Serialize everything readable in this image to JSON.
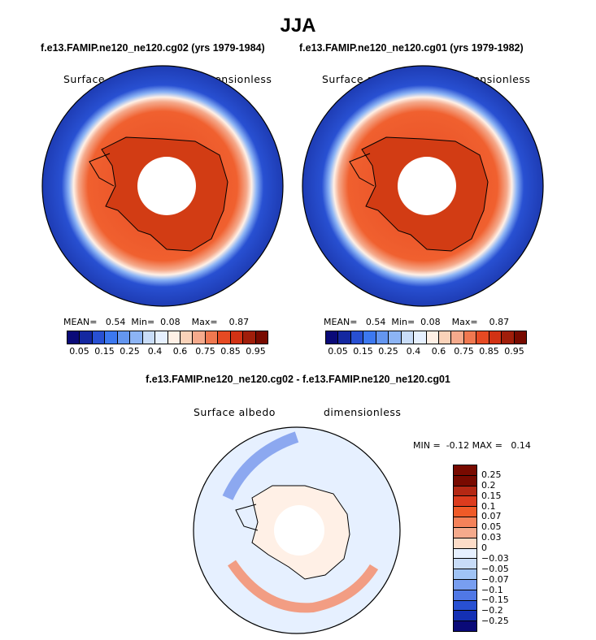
{
  "season": "JJA",
  "case_left": "f.e13.FAMIP.ne120_ne120.cg02 (yrs 1979-1984)",
  "case_right": "f.e13.FAMIP.ne120_ne120.cg01 (yrs 1979-1982)",
  "diff_title": "f.e13.FAMIP.ne120_ne120.cg02 - f.e13.FAMIP.ne120_ne120.cg01",
  "chart_data": [
    {
      "type": "heatmap",
      "title": "f.e13.FAMIP.ne120_ne120.cg02 (yrs 1979-1984)",
      "variable": "Surface albedo",
      "units": "dimensionless",
      "stats": {
        "mean_label": "MEAN=",
        "mean": "0.54",
        "min_label": "Min=",
        "min": "0.08",
        "max_label": "Max=",
        "max": "0.87"
      },
      "levels": [
        "0.05",
        "0.15",
        "0.25",
        "0.4",
        "0.6",
        "0.75",
        "0.85",
        "0.95"
      ]
    },
    {
      "type": "heatmap",
      "title": "f.e13.FAMIP.ne120_ne120.cg01 (yrs 1979-1982)",
      "variable": "Surface albedo",
      "units": "dimensionless",
      "stats": {
        "mean_label": "MEAN=",
        "mean": "0.54",
        "min_label": "Min=",
        "min": "0.08",
        "max_label": "Max=",
        "max": "0.87"
      },
      "levels": [
        "0.05",
        "0.15",
        "0.25",
        "0.4",
        "0.6",
        "0.75",
        "0.85",
        "0.95"
      ]
    },
    {
      "type": "heatmap",
      "title": "f.e13.FAMIP.ne120_ne120.cg02 - f.e13.FAMIP.ne120_ne120.cg01",
      "variable": "Surface albedo",
      "units": "dimensionless",
      "stats": {
        "min_label": "MIN =",
        "min": "-0.12",
        "max_label": "MAX =",
        "max": "0.14"
      },
      "levels": [
        "0.25",
        "0.2",
        "0.15",
        "0.1",
        "0.07",
        "0.05",
        "0.03",
        "0",
        "−0.03",
        "−0.05",
        "−0.07",
        "−0.1",
        "−0.15",
        "−0.2",
        "−0.25"
      ]
    }
  ],
  "colors": {
    "abs_palette": [
      "#0a0a78",
      "#1428a0",
      "#2850d2",
      "#3c78f0",
      "#6496f0",
      "#8cb4f5",
      "#c8dcf8",
      "#e6f0ff",
      "#fff0e6",
      "#fad2b9",
      "#f5aa8c",
      "#f07850",
      "#e64a23",
      "#d23214",
      "#a01e0a",
      "#780a00"
    ],
    "diff_palette": [
      "#780a00",
      "#b42814",
      "#dc3c1e",
      "#f05a28",
      "#f5825a",
      "#f5aa8c",
      "#fddcc8",
      "#e6f0ff",
      "#c8dcf8",
      "#a0c3f5",
      "#789ef0",
      "#5078e6",
      "#2850d2",
      "#1430b4",
      "#0a0a78"
    ]
  }
}
